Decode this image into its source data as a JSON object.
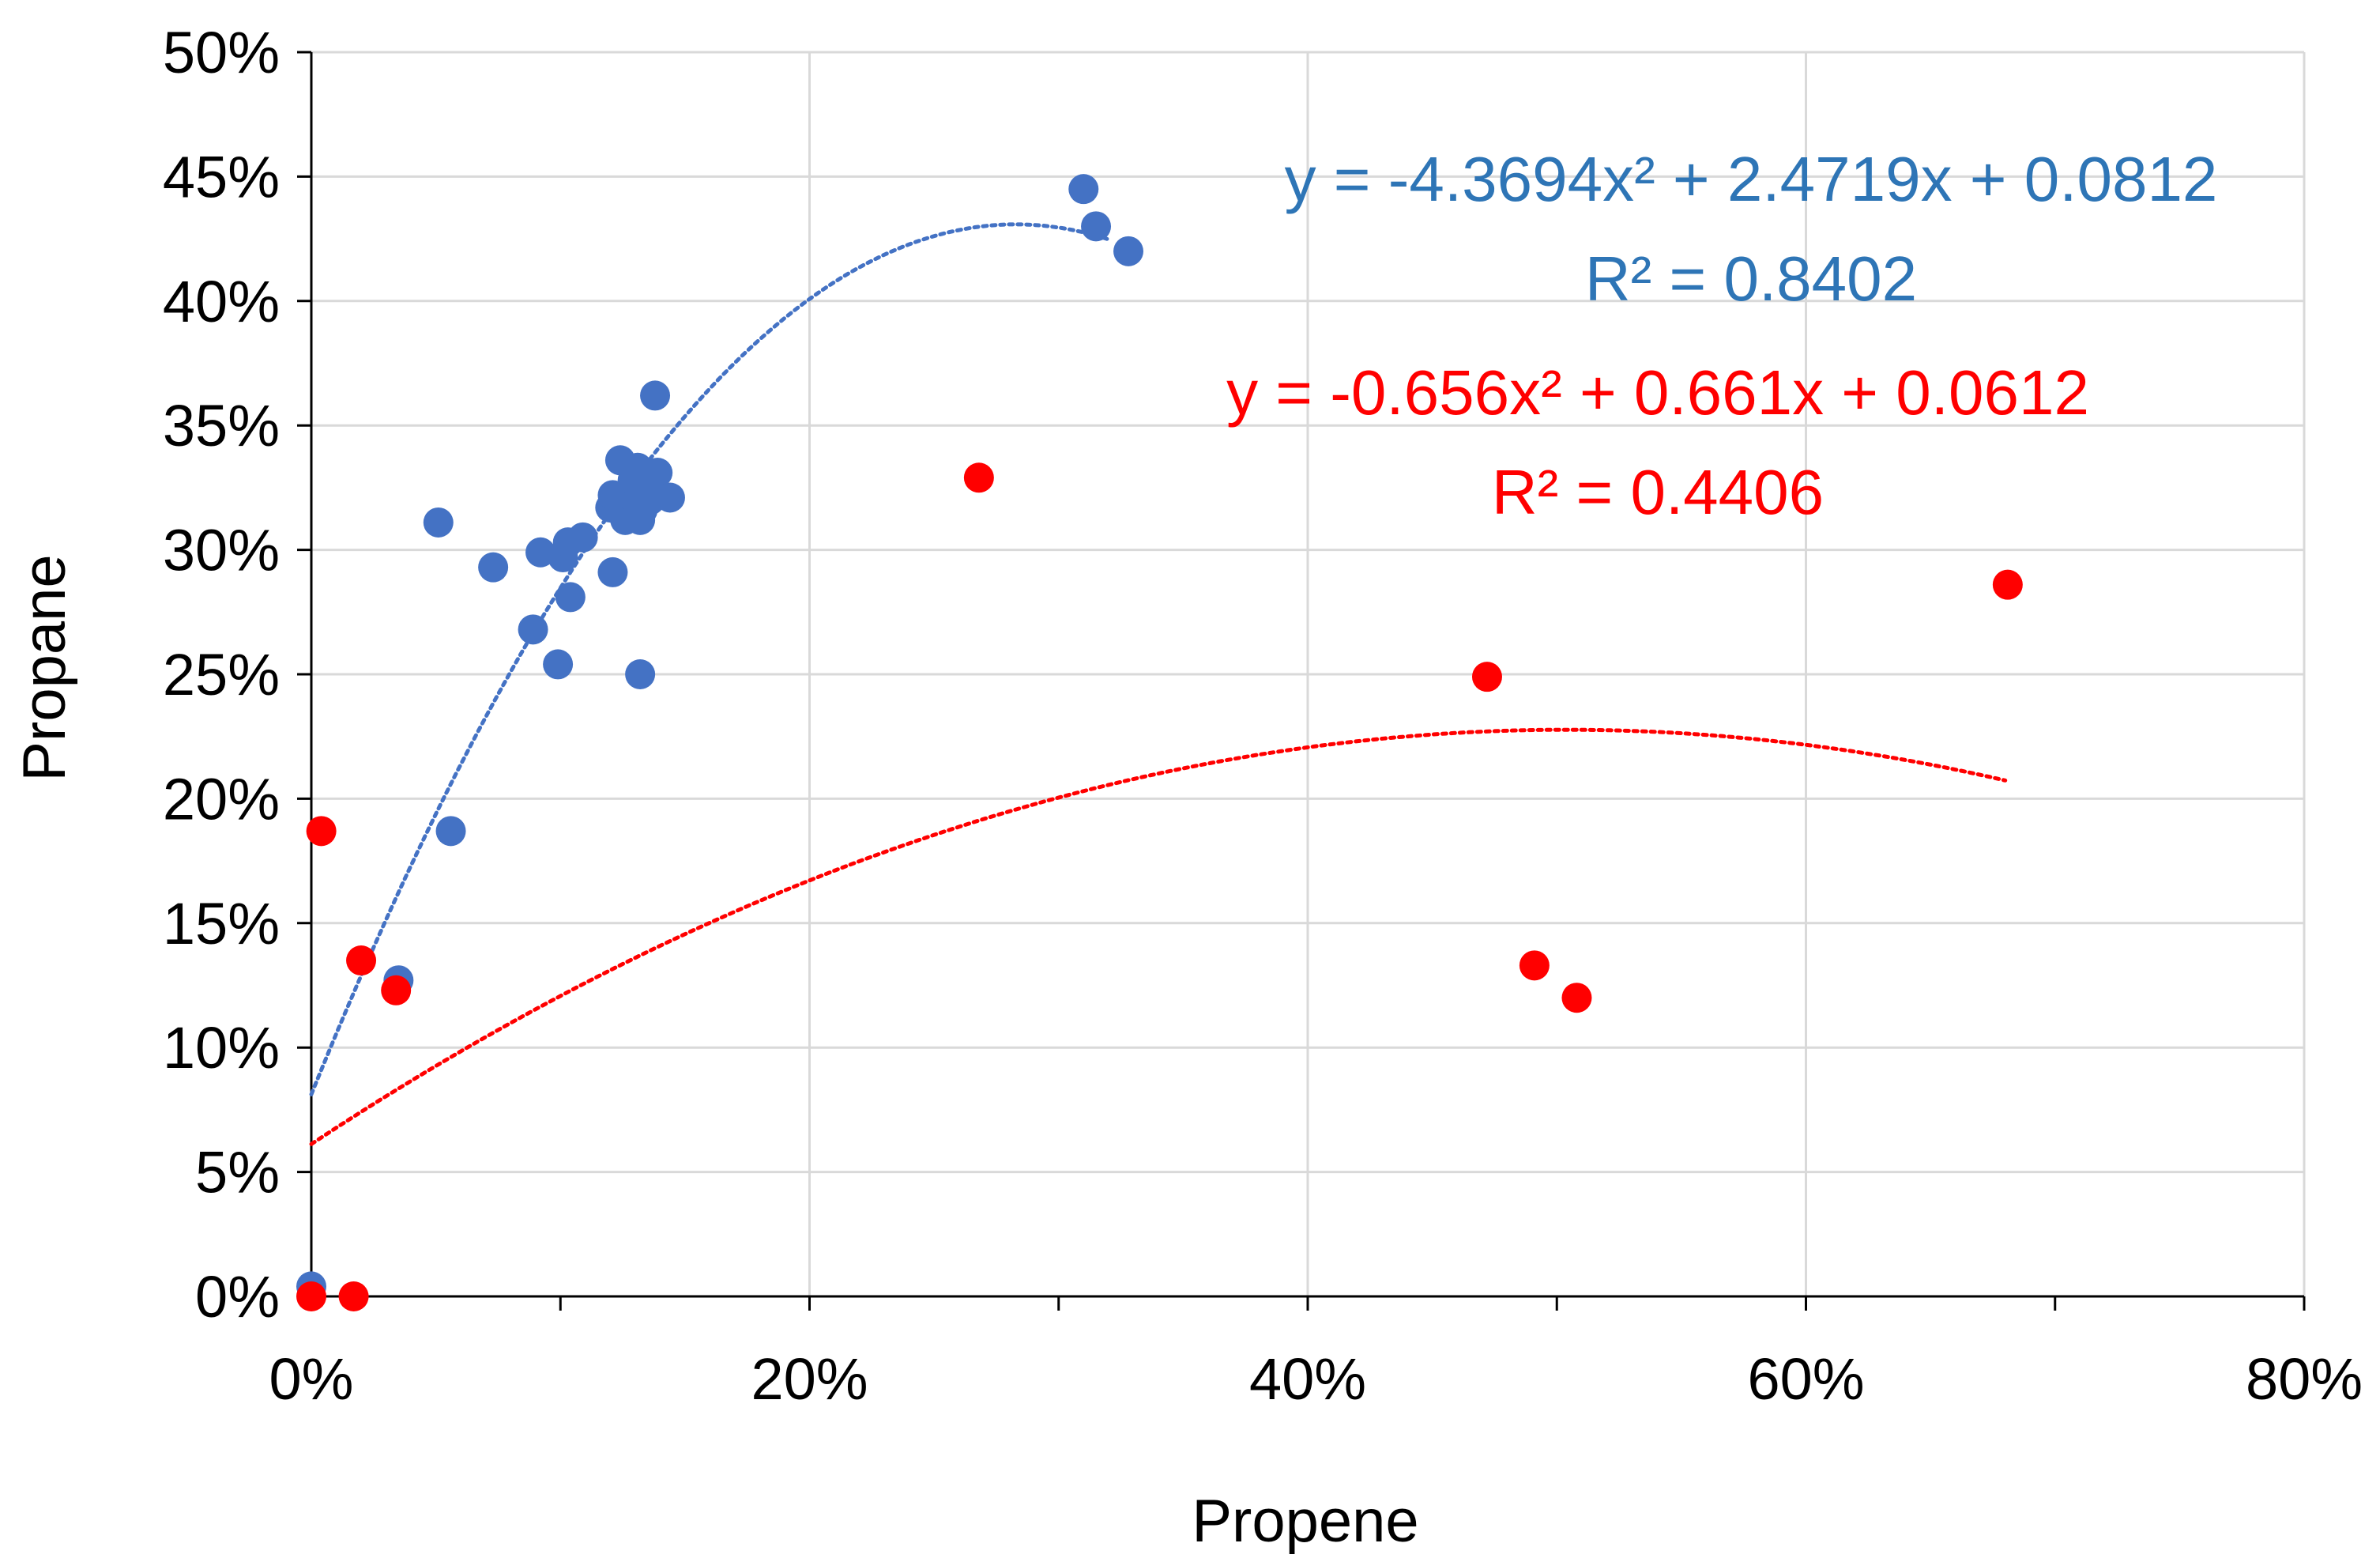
{
  "chart_data": {
    "type": "scatter",
    "title": "",
    "xlabel": "Propene",
    "ylabel": "Propane",
    "xlim": [
      0,
      0.8
    ],
    "ylim": [
      0,
      0.5
    ],
    "x_ticks": [
      0,
      0.2,
      0.4,
      0.6,
      0.8
    ],
    "x_tick_labels": [
      "0%",
      "20%",
      "40%",
      "60%",
      "80%"
    ],
    "y_ticks": [
      0,
      0.05,
      0.1,
      0.15,
      0.2,
      0.25,
      0.3,
      0.35,
      0.4,
      0.45,
      0.5
    ],
    "y_tick_labels": [
      "0%",
      "5%",
      "10%",
      "15%",
      "20%",
      "25%",
      "30%",
      "35%",
      "40%",
      "45%",
      "50%"
    ],
    "x_gridlines": [
      0.2,
      0.4,
      0.6,
      0.8
    ],
    "y_gridlines": [
      0.05,
      0.1,
      0.15,
      0.2,
      0.25,
      0.3,
      0.35,
      0.4,
      0.45,
      0.5
    ],
    "series": [
      {
        "name": "blue",
        "color": "#4472c4",
        "points": [
          [
            0.0,
            0.004
          ],
          [
            0.035,
            0.127
          ],
          [
            0.056,
            0.187
          ],
          [
            0.051,
            0.311
          ],
          [
            0.073,
            0.293
          ],
          [
            0.089,
            0.268
          ],
          [
            0.092,
            0.299
          ],
          [
            0.099,
            0.254
          ],
          [
            0.101,
            0.297
          ],
          [
            0.103,
            0.303
          ],
          [
            0.104,
            0.281
          ],
          [
            0.109,
            0.305
          ],
          [
            0.121,
            0.291
          ],
          [
            0.12,
            0.317
          ],
          [
            0.121,
            0.322
          ],
          [
            0.124,
            0.336
          ],
          [
            0.126,
            0.312
          ],
          [
            0.128,
            0.322
          ],
          [
            0.129,
            0.328
          ],
          [
            0.131,
            0.333
          ],
          [
            0.132,
            0.312
          ],
          [
            0.133,
            0.316
          ],
          [
            0.134,
            0.325
          ],
          [
            0.136,
            0.32
          ],
          [
            0.137,
            0.329
          ],
          [
            0.138,
            0.362
          ],
          [
            0.139,
            0.331
          ],
          [
            0.144,
            0.321
          ],
          [
            0.132,
            0.25
          ],
          [
            0.31,
            0.445
          ],
          [
            0.315,
            0.43
          ],
          [
            0.328,
            0.42
          ]
        ],
        "trendline": {
          "type": "poly2",
          "a": -4.3694,
          "b": 2.4719,
          "c": 0.0812,
          "x_range": [
            0,
            0.32
          ]
        },
        "equation_label": "y = -4.3694x² + 2.4719x + 0.0812",
        "r2_label": "R² = 0.8402"
      },
      {
        "name": "red",
        "color": "#ff0000",
        "points": [
          [
            0.0,
            0.0
          ],
          [
            0.017,
            0.0
          ],
          [
            0.004,
            0.187
          ],
          [
            0.02,
            0.135
          ],
          [
            0.034,
            0.123
          ],
          [
            0.268,
            0.329
          ],
          [
            0.472,
            0.249
          ],
          [
            0.491,
            0.133
          ],
          [
            0.508,
            0.12
          ],
          [
            0.681,
            0.286
          ]
        ],
        "trendline": {
          "type": "poly2",
          "a": -0.656,
          "b": 0.661,
          "c": 0.0612,
          "x_range": [
            0,
            0.68
          ]
        },
        "equation_label": "y = -0.656x² + 0.661x + 0.0612",
        "r2_label": "R² = 0.4406"
      }
    ],
    "legend": "none"
  }
}
